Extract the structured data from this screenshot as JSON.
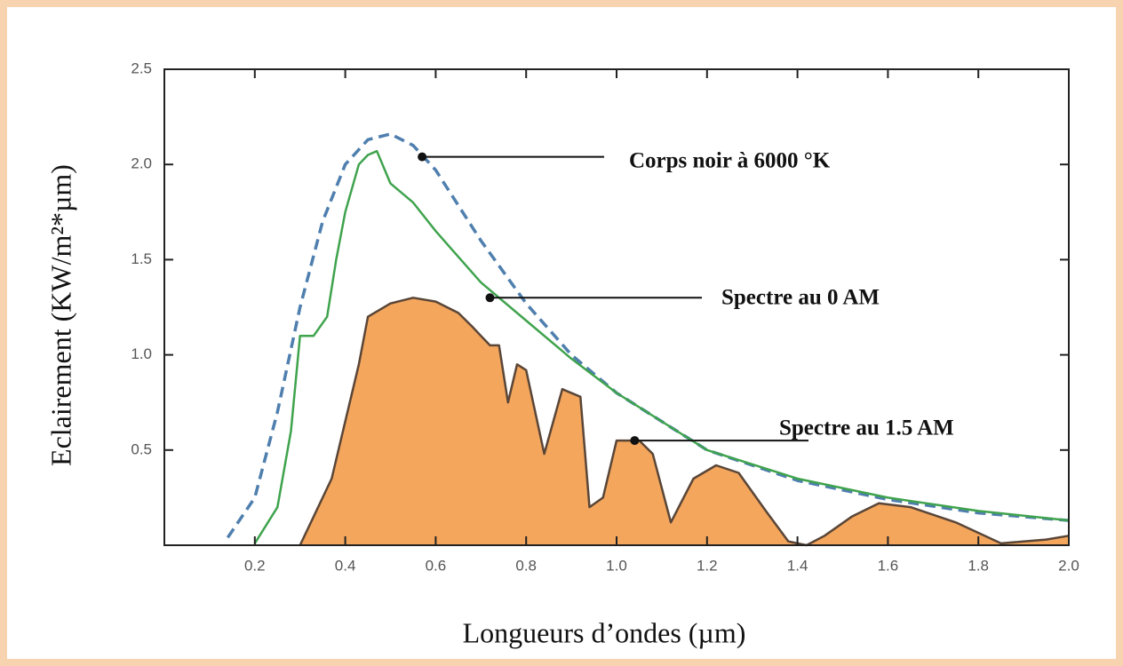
{
  "chart_data": {
    "type": "line",
    "xlabel": "Longueurs d’ondes (µm)",
    "ylabel": "Eclairement (KW/m²*µm)",
    "xlim": [
      0,
      2.0
    ],
    "ylim": [
      0,
      2.5
    ],
    "xticks": [
      0.2,
      0.4,
      0.6,
      0.8,
      {
        "value": 1.0,
        "label": "1.0"
      },
      1.2,
      1.4,
      1.6,
      1.8,
      {
        "value": 2.0,
        "label": "2.0"
      }
    ],
    "yticks": [
      0.5,
      {
        "value": 1.0,
        "label": "1.0"
      },
      1.5,
      {
        "value": 2.0,
        "label": "2.0"
      },
      2.5
    ],
    "grid": false,
    "series": [
      {
        "name": "Corps noir à 6000 °K",
        "color": "#4f7fae",
        "line_style": "dashed",
        "fill": false,
        "x": [
          0.14,
          0.2,
          0.25,
          0.3,
          0.35,
          0.4,
          0.45,
          0.5,
          0.55,
          0.6,
          0.7,
          0.8,
          0.9,
          1.0,
          1.2,
          1.4,
          1.6,
          1.8,
          2.0
        ],
        "values": [
          0.04,
          0.25,
          0.7,
          1.25,
          1.7,
          2.0,
          2.13,
          2.16,
          2.1,
          1.97,
          1.6,
          1.27,
          1.0,
          0.8,
          0.5,
          0.34,
          0.24,
          0.17,
          0.13
        ]
      },
      {
        "name": "Spectre au 0 AM",
        "color": "#3fa34d",
        "line_style": "solid",
        "fill": false,
        "x": [
          0.2,
          0.25,
          0.28,
          0.3,
          0.33,
          0.36,
          0.38,
          0.4,
          0.43,
          0.45,
          0.47,
          0.5,
          0.55,
          0.6,
          0.7,
          0.8,
          0.9,
          1.0,
          1.2,
          1.4,
          1.6,
          1.8,
          2.0
        ],
        "values": [
          0.01,
          0.2,
          0.6,
          1.1,
          1.1,
          1.2,
          1.5,
          1.75,
          2.0,
          2.05,
          2.07,
          1.9,
          1.8,
          1.65,
          1.38,
          1.18,
          0.98,
          0.8,
          0.5,
          0.35,
          0.25,
          0.18,
          0.13
        ]
      },
      {
        "name": "Spectre au 1.5 AM",
        "color": "#f4a65c",
        "line_color": "#5a4638",
        "line_style": "solid",
        "fill": true,
        "x": [
          0.3,
          0.33,
          0.37,
          0.4,
          0.43,
          0.45,
          0.5,
          0.55,
          0.6,
          0.65,
          0.68,
          0.7,
          0.72,
          0.74,
          0.76,
          0.78,
          0.8,
          0.84,
          0.88,
          0.92,
          0.94,
          0.97,
          1.0,
          1.05,
          1.08,
          1.12,
          1.17,
          1.22,
          1.27,
          1.33,
          1.38,
          1.42,
          1.46,
          1.52,
          1.58,
          1.65,
          1.75,
          1.85,
          1.95,
          2.0
        ],
        "values": [
          0,
          0.15,
          0.35,
          0.65,
          0.95,
          1.2,
          1.27,
          1.3,
          1.28,
          1.22,
          1.15,
          1.1,
          1.05,
          1.05,
          0.75,
          0.95,
          0.92,
          0.48,
          0.82,
          0.78,
          0.2,
          0.25,
          0.55,
          0.55,
          0.48,
          0.12,
          0.35,
          0.42,
          0.38,
          0.18,
          0.02,
          0,
          0.05,
          0.15,
          0.22,
          0.2,
          0.12,
          0.01,
          0.03,
          0.05
        ]
      }
    ],
    "annotations": [
      {
        "text": "Corps noir à 6000 °K",
        "x": 0.57,
        "y": 2.04
      },
      {
        "text": "Spectre au 0 AM",
        "x": 0.72,
        "y": 1.3
      },
      {
        "text": "Spectre au 1.5 AM",
        "x": 1.04,
        "y": 0.55
      }
    ]
  }
}
